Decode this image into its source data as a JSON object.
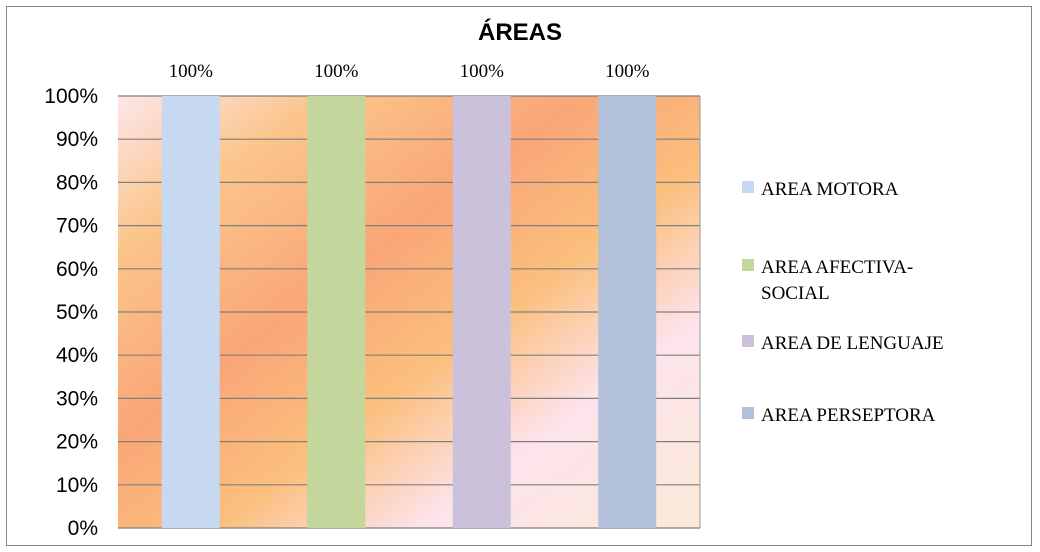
{
  "chart_data": {
    "type": "bar",
    "title": "ÁREAS",
    "categories": [
      "AREA MOTORA",
      "AREA AFECTIVA-SOCIAL",
      "AREA DE LENGUAJE",
      "AREA PERSEPTORA"
    ],
    "series": [
      {
        "name": "AREA MOTORA",
        "value": 1.0,
        "label": "100%",
        "color": "#c6d9f1"
      },
      {
        "name": "AREA AFECTIVA-SOCIAL",
        "value": 1.0,
        "label": "100%",
        "color": "#c3d69b"
      },
      {
        "name": "AREA DE LENGUAJE",
        "value": 1.0,
        "label": "100%",
        "color": "#ccc1da"
      },
      {
        "name": "AREA PERSEPTORA",
        "value": 1.0,
        "label": "100%",
        "color": "#b3c0da"
      }
    ],
    "y_ticks": [
      "0%",
      "10%",
      "20%",
      "30%",
      "40%",
      "50%",
      "60%",
      "70%",
      "80%",
      "90%",
      "100%"
    ],
    "ylim": [
      0,
      1
    ],
    "grid": true,
    "legend_position": "right",
    "legend_lines": [
      [
        "AREA MOTORA"
      ],
      [
        "AREA AFECTIVA-",
        "SOCIAL"
      ],
      [
        "AREA DE LENGUAJE"
      ],
      [
        "AREA PERSEPTORA"
      ]
    ],
    "plot_background": "peach/pink/orange diagonal gradient"
  }
}
